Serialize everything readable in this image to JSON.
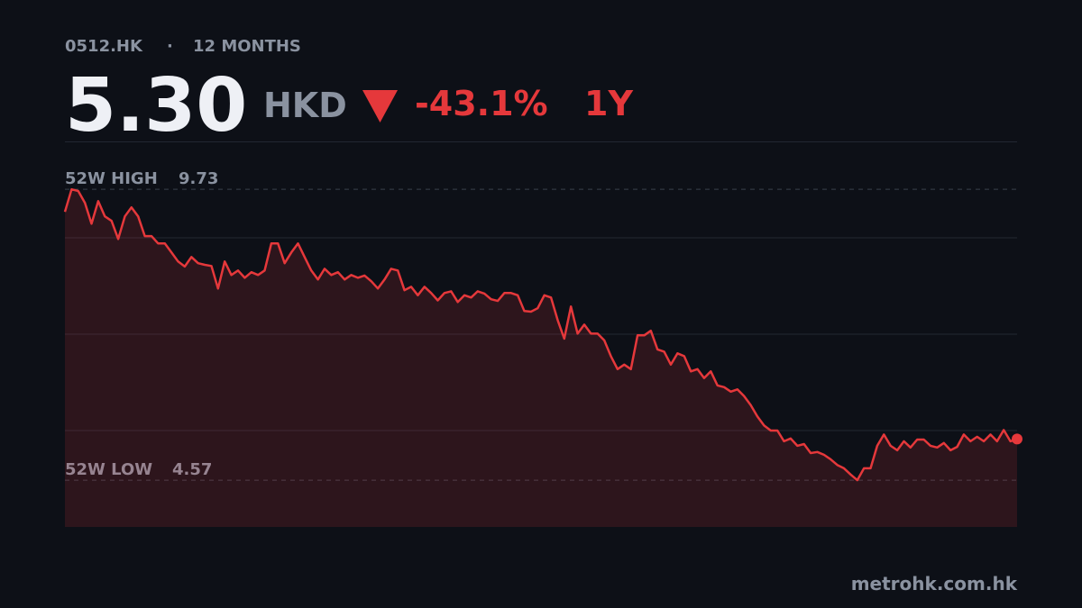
{
  "header": {
    "ticker": "0512.HK",
    "separator": "·",
    "period": "12 MONTHS"
  },
  "price": {
    "value": "5.30",
    "currency": "HKD",
    "change": "-43.1%",
    "range": "1Y"
  },
  "chart_data": {
    "type": "line",
    "color": "#e5383b",
    "values": [
      9.33,
      9.73,
      9.7,
      9.49,
      9.12,
      9.52,
      9.25,
      9.17,
      8.85,
      9.25,
      9.41,
      9.25,
      8.9,
      8.9,
      8.77,
      8.77,
      8.61,
      8.45,
      8.36,
      8.53,
      8.42,
      8.39,
      8.37,
      7.97,
      8.45,
      8.21,
      8.29,
      8.16,
      8.26,
      8.21,
      8.29,
      8.77,
      8.77,
      8.42,
      8.61,
      8.77,
      8.53,
      8.29,
      8.13,
      8.32,
      8.21,
      8.26,
      8.13,
      8.21,
      8.16,
      8.2,
      8.1,
      7.97,
      8.13,
      8.32,
      8.29,
      7.94,
      8.0,
      7.85,
      8.0,
      7.89,
      7.76,
      7.89,
      7.92,
      7.73,
      7.85,
      7.81,
      7.92,
      7.88,
      7.78,
      7.75,
      7.89,
      7.89,
      7.85,
      7.57,
      7.56,
      7.62,
      7.85,
      7.81,
      7.41,
      7.08,
      7.65,
      7.17,
      7.33,
      7.17,
      7.17,
      7.05,
      6.77,
      6.54,
      6.62,
      6.54,
      7.14,
      7.14,
      7.22,
      6.89,
      6.85,
      6.62,
      6.82,
      6.77,
      6.5,
      6.54,
      6.38,
      6.5,
      6.25,
      6.22,
      6.14,
      6.18,
      6.06,
      5.9,
      5.7,
      5.54,
      5.45,
      5.45,
      5.26,
      5.31,
      5.18,
      5.21,
      5.05,
      5.07,
      5.02,
      4.94,
      4.84,
      4.78,
      4.67,
      4.57,
      4.78,
      4.78,
      5.18,
      5.38,
      5.18,
      5.1,
      5.26,
      5.15,
      5.29,
      5.29,
      5.18,
      5.15,
      5.23,
      5.1,
      5.16,
      5.38,
      5.26,
      5.34,
      5.26,
      5.38,
      5.26,
      5.46,
      5.26,
      5.3
    ],
    "ylim": [
      3.74,
      10.58
    ],
    "yticks": [
      5.45,
      7.16,
      8.87
    ],
    "grid": true,
    "high": {
      "label": "52W HIGH",
      "value": 9.73
    },
    "low": {
      "label": "52W LOW",
      "value": 4.57
    }
  },
  "footer": "metrohk.com.hk"
}
